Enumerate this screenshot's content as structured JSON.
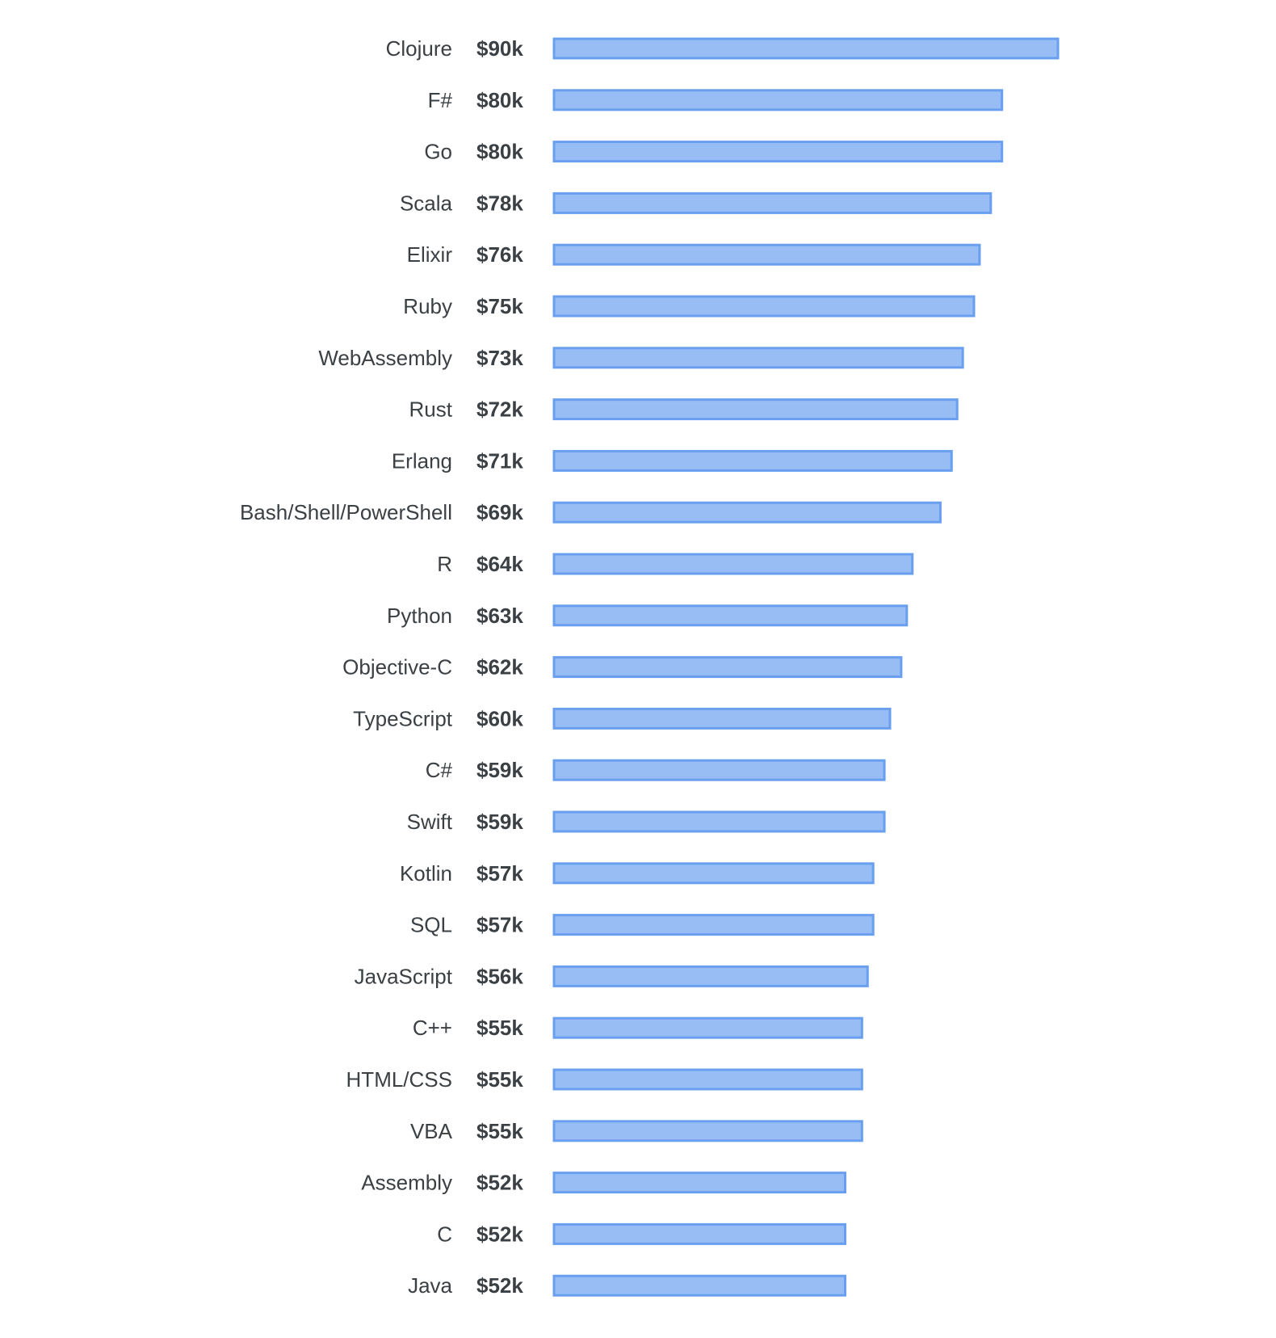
{
  "chart_data": {
    "type": "bar",
    "orientation": "horizontal",
    "title": "",
    "xlabel": "",
    "ylabel": "",
    "xlim": [
      0,
      90
    ],
    "grid": false,
    "legend": "none",
    "colors": {
      "bar_fill": "#97bdf4",
      "bar_stroke": "#6a9ff0",
      "text": "#3b4045"
    },
    "categories": [
      "Clojure",
      "F#",
      "Go",
      "Scala",
      "Elixir",
      "Ruby",
      "WebAssembly",
      "Rust",
      "Erlang",
      "Bash/Shell/PowerShell",
      "R",
      "Python",
      "Objective-C",
      "TypeScript",
      "C#",
      "Swift",
      "Kotlin",
      "SQL",
      "JavaScript",
      "C++",
      "HTML/CSS",
      "VBA",
      "Assembly",
      "C",
      "Java"
    ],
    "values": [
      90,
      80,
      80,
      78,
      76,
      75,
      73,
      72,
      71,
      69,
      64,
      63,
      62,
      60,
      59,
      59,
      57,
      57,
      56,
      55,
      55,
      55,
      52,
      52,
      52
    ],
    "value_labels": [
      "$90k",
      "$80k",
      "$80k",
      "$78k",
      "$76k",
      "$75k",
      "$73k",
      "$72k",
      "$71k",
      "$69k",
      "$64k",
      "$63k",
      "$62k",
      "$60k",
      "$59k",
      "$59k",
      "$57k",
      "$57k",
      "$56k",
      "$55k",
      "$55k",
      "$55k",
      "$52k",
      "$52k",
      "$52k"
    ]
  }
}
